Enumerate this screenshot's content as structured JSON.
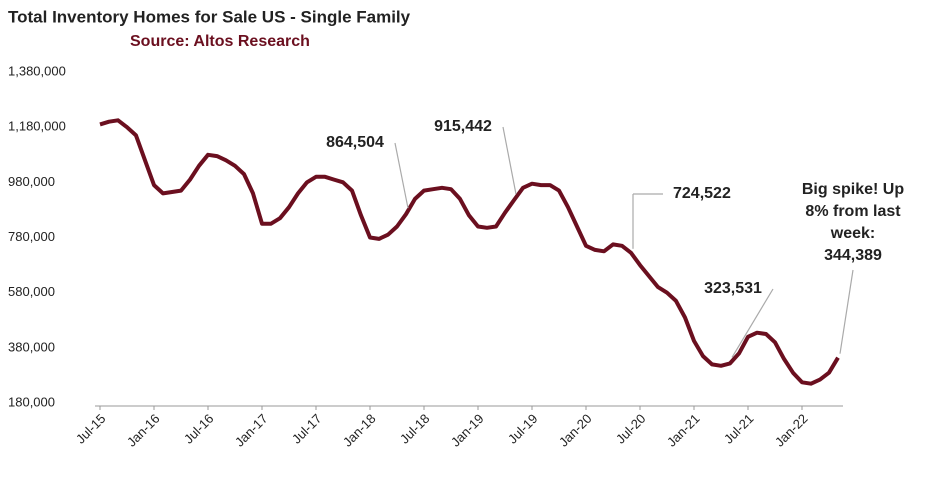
{
  "chart_data": {
    "type": "line",
    "title": "Total Inventory Homes for Sale US - Single Family",
    "subtitle": "Source: Altos Research",
    "color": "#6b0f1f",
    "categories": [
      "Jul-15",
      null,
      null,
      null,
      null,
      null,
      "Jan-16",
      null,
      null,
      null,
      null,
      null,
      "Jul-16",
      null,
      null,
      null,
      null,
      null,
      "Jan-17",
      null,
      null,
      null,
      null,
      null,
      "Jul-17",
      null,
      null,
      null,
      null,
      null,
      "Jan-18",
      null,
      null,
      null,
      null,
      null,
      "Jul-18",
      null,
      null,
      null,
      null,
      null,
      "Jan-19",
      null,
      null,
      null,
      null,
      null,
      "Jul-19",
      null,
      null,
      null,
      null,
      null,
      "Jan-20",
      null,
      null,
      null,
      null,
      null,
      "Jul-20",
      null,
      null,
      null,
      null,
      null,
      "Jan-21",
      null,
      null,
      null,
      null,
      null,
      "Jul-21",
      null,
      null,
      null,
      null,
      null,
      "Jan-22",
      null,
      null,
      null,
      null
    ],
    "values": [
      1190000,
      1200000,
      1205000,
      1180000,
      1150000,
      1060000,
      970000,
      940000,
      945000,
      950000,
      990000,
      1040000,
      1080000,
      1075000,
      1060000,
      1040000,
      1010000,
      940000,
      830000,
      830000,
      850000,
      890000,
      940000,
      980000,
      1000000,
      1000000,
      990000,
      980000,
      950000,
      860000,
      780000,
      775000,
      790000,
      820000,
      864504,
      920000,
      950000,
      955000,
      960000,
      955000,
      920000,
      860000,
      820000,
      815000,
      820000,
      870000,
      915442,
      960000,
      975000,
      970000,
      970000,
      950000,
      890000,
      820000,
      750000,
      735000,
      730000,
      755000,
      750000,
      724522,
      680000,
      640000,
      600000,
      580000,
      550000,
      490000,
      405000,
      350000,
      320000,
      315000,
      323531,
      360000,
      420000,
      435000,
      430000,
      400000,
      340000,
      290000,
      255000,
      250000,
      265000,
      290000,
      344389
    ],
    "value_labels": [
      null,
      null,
      null,
      null,
      null,
      null,
      null,
      null,
      null,
      null,
      null,
      null,
      null,
      null,
      null,
      null,
      null,
      null,
      null,
      null,
      null,
      null,
      null,
      null,
      null,
      null,
      null,
      null,
      null,
      null,
      null,
      null,
      null,
      null,
      "864,504",
      null,
      null,
      null,
      null,
      null,
      null,
      null,
      null,
      null,
      null,
      null,
      "915,442",
      null,
      null,
      null,
      null,
      null,
      null,
      null,
      null,
      null,
      null,
      null,
      null,
      "724,522",
      null,
      null,
      null,
      null,
      null,
      null,
      null,
      null,
      null,
      null,
      "323,531",
      null,
      null,
      null,
      null,
      null,
      null,
      null,
      null,
      null,
      null,
      null,
      "344,389"
    ],
    "annotation": [
      "Big spike! Up",
      "8% from last",
      "week:"
    ],
    "ylim": [
      180000,
      1380000
    ],
    "yticks": [
      {
        "value": 180000,
        "label": "180,000"
      },
      {
        "value": 380000,
        "label": "380,000"
      },
      {
        "value": 580000,
        "label": "580,000"
      },
      {
        "value": 780000,
        "label": "780,000"
      },
      {
        "value": 980000,
        "label": "980,000"
      },
      {
        "value": 1180000,
        "label": "1,180,000"
      },
      {
        "value": 1380000,
        "label": "1,380,000"
      }
    ]
  }
}
